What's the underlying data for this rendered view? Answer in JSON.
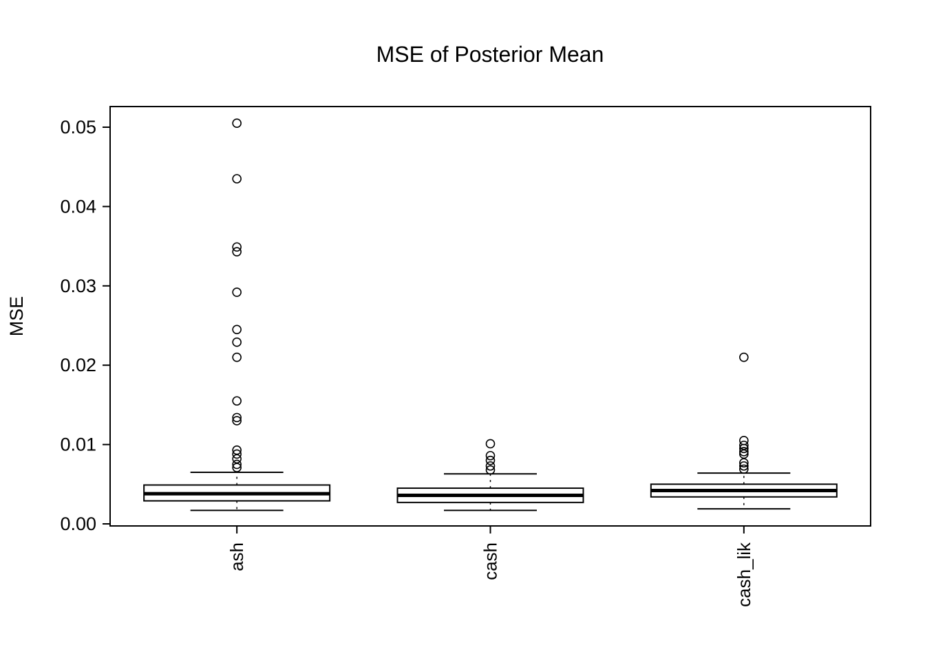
{
  "chart_data": {
    "type": "boxplot",
    "title": "MSE of Posterior Mean",
    "ylabel": "MSE",
    "xlabel": "",
    "ylim": [
      0,
      0.052
    ],
    "ytick_values": [
      0,
      0.01,
      0.02,
      0.03,
      0.04,
      0.05
    ],
    "ytick_labels": [
      "0.00",
      "0.01",
      "0.02",
      "0.03",
      "0.04",
      "0.05"
    ],
    "grid": false,
    "legend": "none",
    "frame": true,
    "categories": [
      "ash",
      "cash",
      "cash_lik"
    ],
    "series": [
      {
        "name": "ash",
        "lower_whisker": 0.0017,
        "q1": 0.0029,
        "median": 0.0038,
        "q3": 0.0049,
        "upper_whisker": 0.0065,
        "outliers": [
          0.0505,
          0.0435,
          0.0349,
          0.0343,
          0.0292,
          0.0245,
          0.0229,
          0.021,
          0.0155,
          0.0134,
          0.013,
          0.0093,
          0.0088,
          0.0082,
          0.0075,
          0.0071
        ]
      },
      {
        "name": "cash",
        "lower_whisker": 0.0017,
        "q1": 0.0027,
        "median": 0.0036,
        "q3": 0.0045,
        "upper_whisker": 0.0063,
        "outliers": [
          0.0101,
          0.0086,
          0.008,
          0.0073,
          0.0068
        ]
      },
      {
        "name": "cash_lik",
        "lower_whisker": 0.0019,
        "q1": 0.0034,
        "median": 0.0042,
        "q3": 0.005,
        "upper_whisker": 0.0064,
        "outliers": [
          0.021,
          0.0105,
          0.0099,
          0.0095,
          0.0091,
          0.0088,
          0.0077,
          0.0073,
          0.0069
        ]
      }
    ]
  },
  "colors": {
    "stroke": "#000000",
    "box_fill": "#ffffff",
    "background": "#ffffff"
  }
}
